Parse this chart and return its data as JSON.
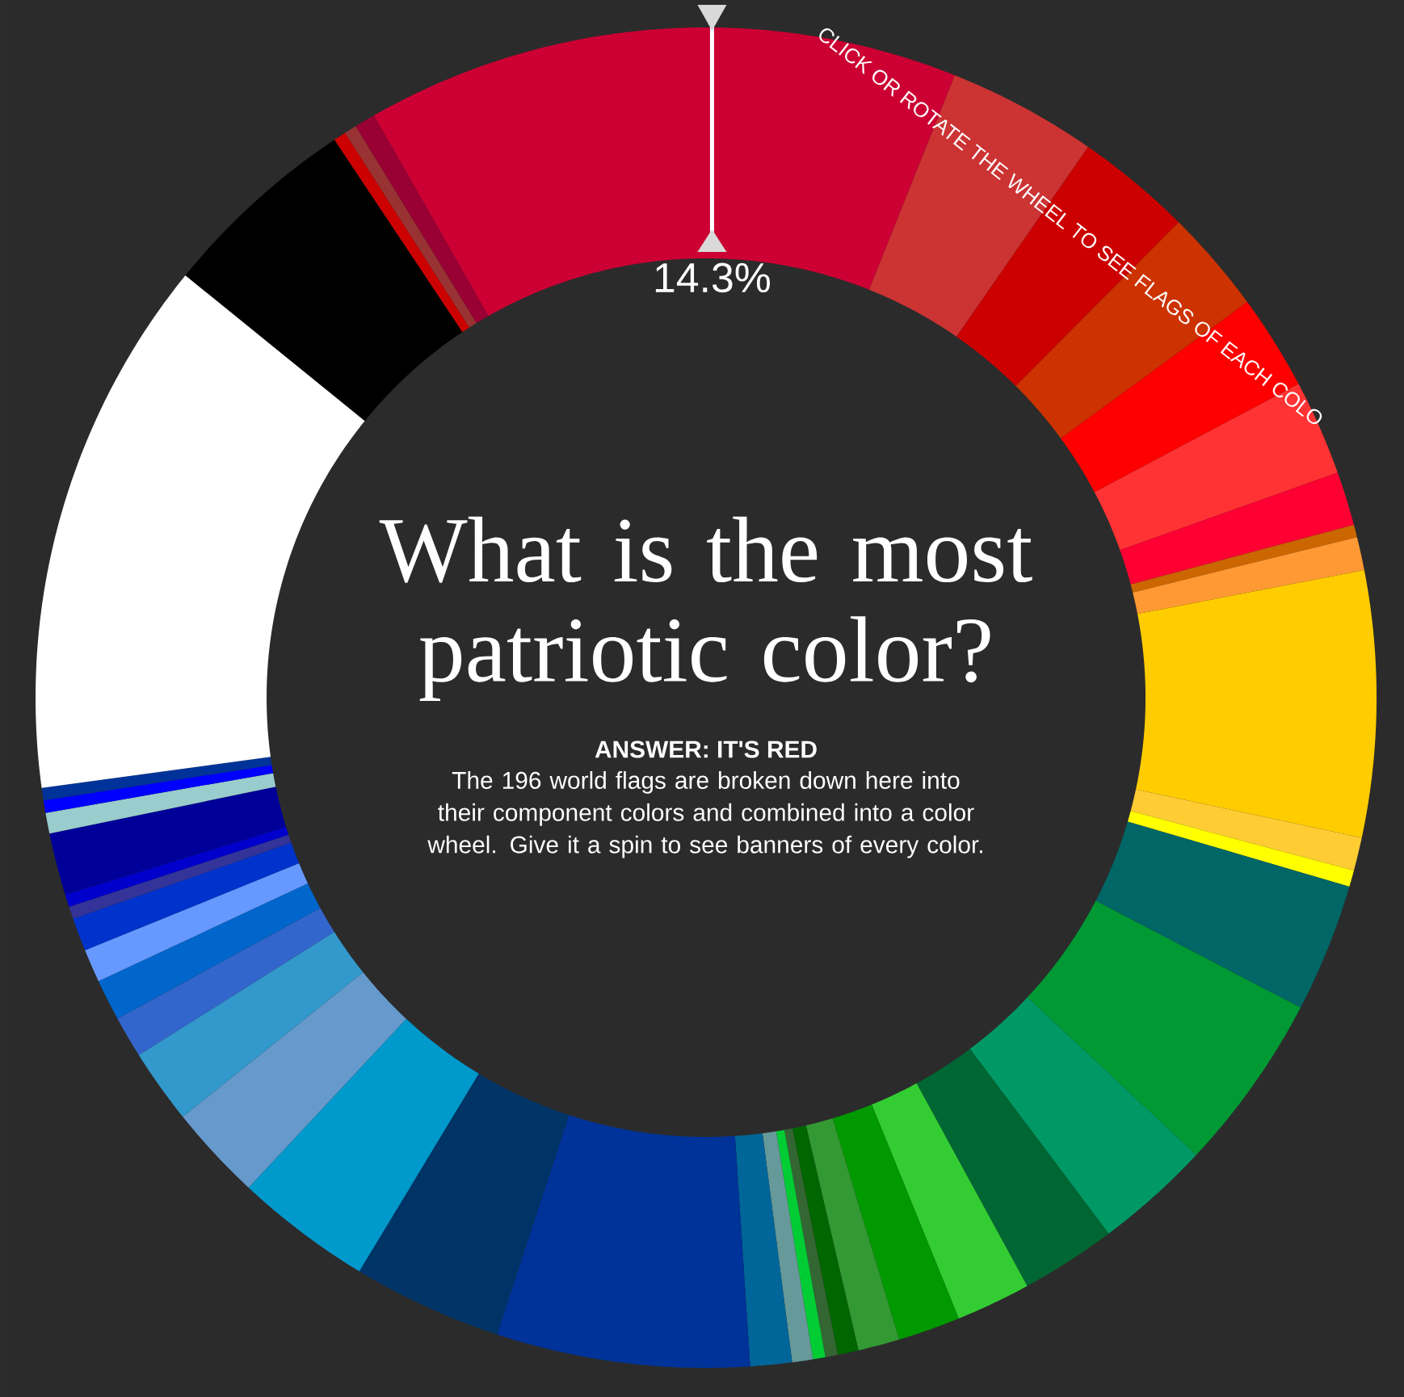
{
  "chart_data": {
    "type": "donut",
    "title": "What is the most patriotic color?",
    "subtitle": "ANSWER: IT'S RED",
    "annotations": [
      "CLICK OR ROTATE THE WHEEL TO SEE FLAGS OF EACH COLO",
      "The 196 world flags are broken down here into their component colors and combined into a color wheel. Give it a spin to see banners of every color."
    ],
    "categories": [
      null,
      null,
      null,
      null,
      null,
      null,
      null,
      null,
      null,
      null,
      null,
      null,
      null,
      null,
      null,
      null,
      null,
      null,
      null,
      null,
      null,
      null,
      null,
      null,
      null,
      null,
      null,
      null,
      null,
      null,
      null,
      null,
      null,
      null,
      null,
      null,
      null,
      null,
      null,
      null,
      null,
      null,
      null,
      null
    ],
    "values": [
      14.3,
      3.6,
      2.8,
      2.5,
      2.3,
      2.3,
      1.3,
      0.3,
      0.8,
      6.4,
      0.8,
      0.4,
      3.1,
      4.3,
      2.8,
      2.3,
      1.8,
      1.5,
      1.0,
      0.5,
      0.3,
      0.3,
      0.5,
      1.0,
      6.1,
      3.6,
      3.3,
      2.3,
      1.8,
      1.0,
      1.0,
      0.8,
      0.8,
      0.3,
      0.3,
      1.5,
      0.5,
      0.3,
      0.3,
      13.0,
      4.8,
      0.3,
      0.3,
      0.5
    ],
    "colors": [
      "#cc0033",
      "#cc3333",
      "#cc0000",
      "#cc3300",
      "#ff0000",
      "#ff3333",
      "#ff0033",
      "#cc6600",
      "#ff9933",
      "#ffcc00",
      "#ffcc33",
      "#ffff00",
      "#006666",
      "#009933",
      "#009966",
      "#006633",
      "#33cc33",
      "#009900",
      "#339933",
      "#006600",
      "#336633",
      "#00cc33",
      "#669999",
      "#006699",
      "#003399",
      "#003366",
      "#0099cc",
      "#6699cc",
      "#3399cc",
      "#3366cc",
      "#0066cc",
      "#6699ff",
      "#0033cc",
      "#333399",
      "#0000cc",
      "#000099",
      "#99cccc",
      "#0000ff",
      "#003399",
      "#ffffff",
      "#000000",
      "#cc0000",
      "#993333",
      "#990033"
    ],
    "value_labels": [
      "14.3%",
      null,
      null,
      null,
      null,
      null,
      null,
      null,
      null,
      null,
      null,
      null,
      null,
      null,
      null,
      null,
      null,
      null,
      null,
      null,
      null,
      null,
      null,
      null,
      null,
      null,
      null,
      null,
      null,
      null,
      null,
      null,
      null,
      null,
      null,
      null,
      null,
      null,
      null,
      null,
      null,
      null,
      null,
      null
    ]
  }
}
